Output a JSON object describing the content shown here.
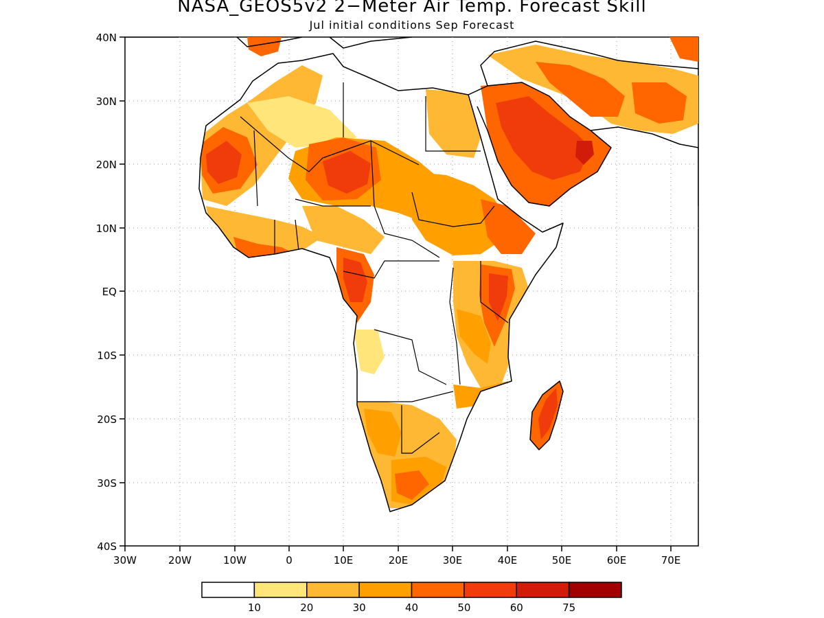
{
  "header": {
    "title": "NASA_GEOS5v2 2−Meter Air Temp. Forecast Skill",
    "subtitle": "Jul initial conditions  Sep Forecast"
  },
  "map": {
    "projection": "lat-lon",
    "lon_range": [
      -30,
      75
    ],
    "lat_range": [
      -40,
      40
    ],
    "grid": "dotted",
    "lon_ticks": [
      "30W",
      "20W",
      "10W",
      "0",
      "10E",
      "20E",
      "30E",
      "40E",
      "50E",
      "60E",
      "70E"
    ],
    "lat_ticks": [
      "40N",
      "30N",
      "20N",
      "10N",
      "EQ",
      "10S",
      "20S",
      "30S",
      "40S"
    ],
    "field": "2-meter air temperature forecast skill",
    "high_skill_regions": [
      {
        "region": "Arabian Peninsula",
        "level": "50-75"
      },
      {
        "region": "Sahel / Chad",
        "level": "50-60"
      },
      {
        "region": "Western Sahara / Mauritania",
        "level": "40-60"
      },
      {
        "region": "East Africa / Kenya",
        "level": "50-75"
      },
      {
        "region": "Madagascar",
        "level": "50-60"
      },
      {
        "region": "Southern Africa",
        "level": "30-50"
      },
      {
        "region": "Iran",
        "level": "40-60"
      }
    ]
  },
  "colorbar": {
    "labels": [
      "10",
      "20",
      "30",
      "40",
      "50",
      "60",
      "75"
    ],
    "colors": [
      "#ffffff",
      "#ffe57a",
      "#ffb833",
      "#ffa000",
      "#ff6600",
      "#f03c0a",
      "#d01c08",
      "#a00000"
    ]
  }
}
